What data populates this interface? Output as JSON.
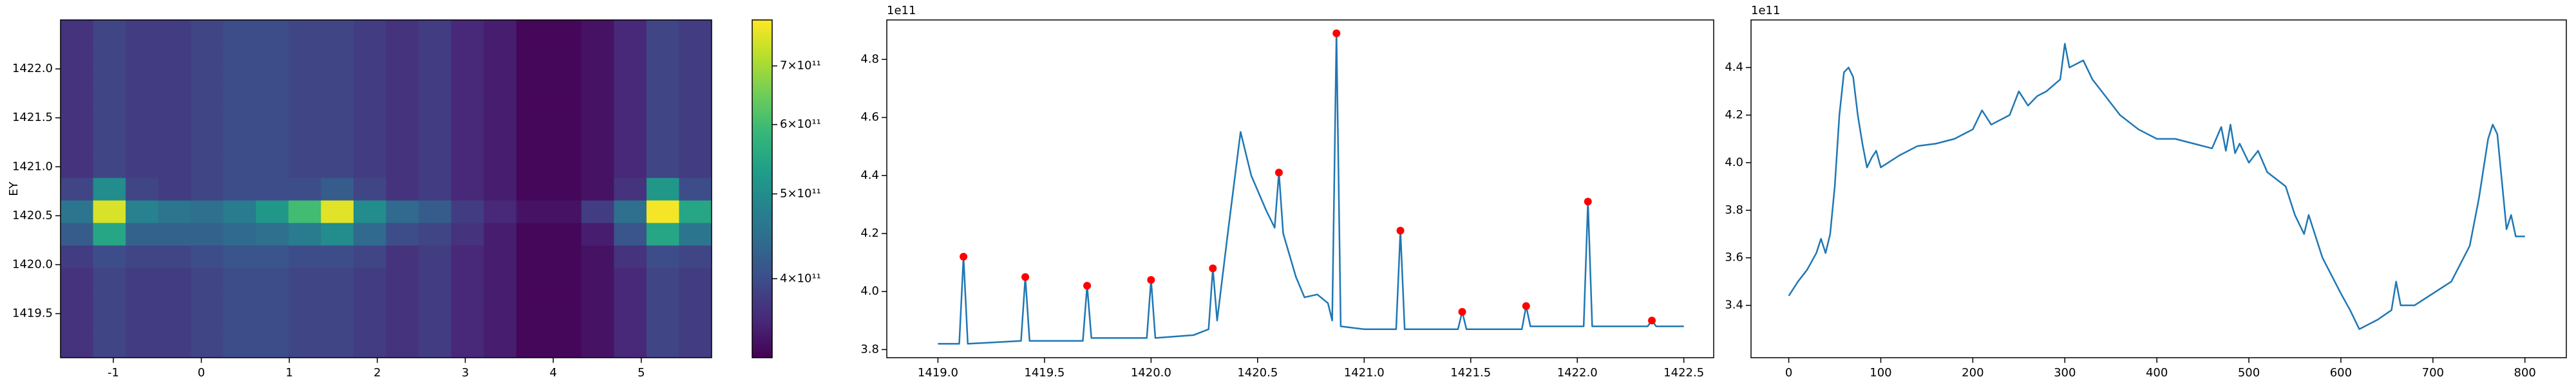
{
  "chart_data": [
    {
      "type": "heatmap",
      "ylabel": "EY",
      "colormap": "viridis",
      "xlim": [
        -1.6,
        5.8
      ],
      "ylim": [
        1419.05,
        1422.5
      ],
      "xticks": [
        -1,
        0,
        1,
        2,
        3,
        4,
        5
      ],
      "yticks": [
        1419.5,
        {
          "value": 1420,
          "label": "1420.0"
        },
        1420.5,
        {
          "value": 1421,
          "label": "1421.0"
        },
        1421.5,
        {
          "value": 1422,
          "label": "1422.0"
        }
      ],
      "xbins": [
        -1.6,
        -1.23,
        -0.86,
        -0.49,
        -0.12,
        0.25,
        0.62,
        0.99,
        1.36,
        1.73,
        2.1,
        2.47,
        2.84,
        3.21,
        3.58,
        3.95,
        4.32,
        4.69,
        5.06,
        5.43,
        5.8
      ],
      "ybins": [
        1419.05,
        1419.28,
        1419.51,
        1419.74,
        1419.97,
        1420.2,
        1420.43,
        1420.66,
        1420.89,
        1421.12,
        1421.35,
        1421.58,
        1421.81,
        1422.04,
        1422.27,
        1422.5
      ],
      "z": [
        [
          370000000000.0,
          390000000000.0,
          380000000000.0,
          380000000000.0,
          390000000000.0,
          400000000000.0,
          400000000000.0,
          390000000000.0,
          390000000000.0,
          380000000000.0,
          370000000000.0,
          380000000000.0,
          360000000000.0,
          350000000000.0,
          330000000000.0,
          330000000000.0,
          340000000000.0,
          360000000000.0,
          390000000000.0,
          380000000000.0
        ],
        [
          370000000000.0,
          390000000000.0,
          380000000000.0,
          380000000000.0,
          390000000000.0,
          400000000000.0,
          400000000000.0,
          390000000000.0,
          390000000000.0,
          380000000000.0,
          370000000000.0,
          380000000000.0,
          360000000000.0,
          350000000000.0,
          330000000000.0,
          330000000000.0,
          340000000000.0,
          360000000000.0,
          390000000000.0,
          380000000000.0
        ],
        [
          370000000000.0,
          390000000000.0,
          380000000000.0,
          380000000000.0,
          390000000000.0,
          400000000000.0,
          400000000000.0,
          390000000000.0,
          390000000000.0,
          380000000000.0,
          370000000000.0,
          380000000000.0,
          360000000000.0,
          350000000000.0,
          330000000000.0,
          330000000000.0,
          340000000000.0,
          360000000000.0,
          390000000000.0,
          380000000000.0
        ],
        [
          370000000000.0,
          390000000000.0,
          380000000000.0,
          380000000000.0,
          390000000000.0,
          400000000000.0,
          400000000000.0,
          390000000000.0,
          390000000000.0,
          380000000000.0,
          370000000000.0,
          380000000000.0,
          360000000000.0,
          350000000000.0,
          330000000000.0,
          330000000000.0,
          340000000000.0,
          360000000000.0,
          390000000000.0,
          380000000000.0
        ],
        [
          380000000000.0,
          400000000000.0,
          390000000000.0,
          390000000000.0,
          400000000000.0,
          410000000000.0,
          410000000000.0,
          400000000000.0,
          400000000000.0,
          390000000000.0,
          370000000000.0,
          380000000000.0,
          360000000000.0,
          350000000000.0,
          330000000000.0,
          330000000000.0,
          340000000000.0,
          370000000000.0,
          400000000000.0,
          390000000000.0
        ],
        [
          420000000000.0,
          550000000000.0,
          430000000000.0,
          430000000000.0,
          430000000000.0,
          440000000000.0,
          450000000000.0,
          470000000000.0,
          500000000000.0,
          440000000000.0,
          400000000000.0,
          390000000000.0,
          370000000000.0,
          350000000000.0,
          330000000000.0,
          330000000000.0,
          350000000000.0,
          410000000000.0,
          550000000000.0,
          460000000000.0
        ],
        [
          460000000000.0,
          750000000000.0,
          480000000000.0,
          460000000000.0,
          450000000000.0,
          470000000000.0,
          520000000000.0,
          600000000000.0,
          760000000000.0,
          500000000000.0,
          440000000000.0,
          420000000000.0,
          380000000000.0,
          360000000000.0,
          340000000000.0,
          340000000000.0,
          380000000000.0,
          450000000000.0,
          780000000000.0,
          550000000000.0
        ],
        [
          390000000000.0,
          500000000000.0,
          390000000000.0,
          380000000000.0,
          390000000000.0,
          400000000000.0,
          400000000000.0,
          400000000000.0,
          420000000000.0,
          390000000000.0,
          370000000000.0,
          380000000000.0,
          360000000000.0,
          350000000000.0,
          330000000000.0,
          330000000000.0,
          340000000000.0,
          370000000000.0,
          520000000000.0,
          400000000000.0
        ],
        [
          370000000000.0,
          390000000000.0,
          380000000000.0,
          380000000000.0,
          390000000000.0,
          400000000000.0,
          400000000000.0,
          390000000000.0,
          390000000000.0,
          380000000000.0,
          370000000000.0,
          380000000000.0,
          360000000000.0,
          350000000000.0,
          330000000000.0,
          330000000000.0,
          340000000000.0,
          360000000000.0,
          390000000000.0,
          380000000000.0
        ],
        [
          370000000000.0,
          390000000000.0,
          380000000000.0,
          380000000000.0,
          390000000000.0,
          400000000000.0,
          400000000000.0,
          390000000000.0,
          390000000000.0,
          380000000000.0,
          370000000000.0,
          380000000000.0,
          360000000000.0,
          350000000000.0,
          330000000000.0,
          330000000000.0,
          340000000000.0,
          360000000000.0,
          390000000000.0,
          380000000000.0
        ],
        [
          370000000000.0,
          390000000000.0,
          380000000000.0,
          380000000000.0,
          390000000000.0,
          400000000000.0,
          400000000000.0,
          390000000000.0,
          390000000000.0,
          380000000000.0,
          370000000000.0,
          380000000000.0,
          360000000000.0,
          350000000000.0,
          330000000000.0,
          330000000000.0,
          340000000000.0,
          360000000000.0,
          390000000000.0,
          380000000000.0
        ],
        [
          370000000000.0,
          390000000000.0,
          380000000000.0,
          380000000000.0,
          390000000000.0,
          400000000000.0,
          400000000000.0,
          390000000000.0,
          390000000000.0,
          380000000000.0,
          370000000000.0,
          380000000000.0,
          360000000000.0,
          350000000000.0,
          330000000000.0,
          330000000000.0,
          340000000000.0,
          360000000000.0,
          390000000000.0,
          380000000000.0
        ],
        [
          370000000000.0,
          390000000000.0,
          380000000000.0,
          380000000000.0,
          390000000000.0,
          400000000000.0,
          400000000000.0,
          390000000000.0,
          390000000000.0,
          380000000000.0,
          370000000000.0,
          380000000000.0,
          360000000000.0,
          350000000000.0,
          330000000000.0,
          330000000000.0,
          340000000000.0,
          360000000000.0,
          390000000000.0,
          380000000000.0
        ],
        [
          370000000000.0,
          390000000000.0,
          380000000000.0,
          380000000000.0,
          390000000000.0,
          400000000000.0,
          400000000000.0,
          390000000000.0,
          390000000000.0,
          380000000000.0,
          370000000000.0,
          380000000000.0,
          360000000000.0,
          350000000000.0,
          330000000000.0,
          330000000000.0,
          340000000000.0,
          360000000000.0,
          390000000000.0,
          380000000000.0
        ],
        [
          370000000000.0,
          390000000000.0,
          380000000000.0,
          380000000000.0,
          390000000000.0,
          400000000000.0,
          400000000000.0,
          390000000000.0,
          390000000000.0,
          380000000000.0,
          370000000000.0,
          380000000000.0,
          360000000000.0,
          350000000000.0,
          330000000000.0,
          330000000000.0,
          340000000000.0,
          360000000000.0,
          390000000000.0,
          380000000000.0
        ]
      ],
      "colorbar": {
        "lim": [
          325000000000.0,
          790000000000.0
        ],
        "log": true,
        "ticks": [
          {
            "value": 400000000000.0,
            "label": "4×10¹¹"
          },
          {
            "value": 500000000000.0,
            "label": "5×10¹¹"
          },
          {
            "value": 600000000000.0,
            "label": "6×10¹¹"
          },
          {
            "value": 700000000000.0,
            "label": "7×10¹¹"
          }
        ]
      }
    },
    {
      "type": "line",
      "offset_label": "1e11",
      "xlim": [
        1418.76,
        1422.64
      ],
      "ylim": [
        377200000000.0,
        493600000000.0
      ],
      "xticks": [
        {
          "value": 1419,
          "label": "1419.0"
        },
        1419.5,
        {
          "value": 1420,
          "label": "1420.0"
        },
        1420.5,
        {
          "value": 1421,
          "label": "1421.0"
        },
        1421.5,
        {
          "value": 1422,
          "label": "1422.0"
        },
        1422.5
      ],
      "yticks": [
        {
          "value": 380000000000.0,
          "label": "3.8"
        },
        {
          "value": 400000000000.0,
          "label": "4.0"
        },
        {
          "value": 420000000000.0,
          "label": "4.2"
        },
        {
          "value": 440000000000.0,
          "label": "4.4"
        },
        {
          "value": 460000000000.0,
          "label": "4.6"
        },
        {
          "value": 480000000000.0,
          "label": "4.8"
        }
      ],
      "series": [
        {
          "color": "#1f77b4",
          "x": [
            1419.0,
            1419.1,
            1419.12,
            1419.14,
            1419.39,
            1419.41,
            1419.43,
            1419.68,
            1419.7,
            1419.72,
            1419.98,
            1420.0,
            1420.02,
            1420.2,
            1420.27,
            1420.29,
            1420.31,
            1420.36,
            1420.42,
            1420.47,
            1420.54,
            1420.58,
            1420.6,
            1420.62,
            1420.68,
            1420.72,
            1420.78,
            1420.83,
            1420.85,
            1420.87,
            1420.89,
            1421.0,
            1421.15,
            1421.17,
            1421.19,
            1421.44,
            1421.46,
            1421.48,
            1421.74,
            1421.76,
            1421.78,
            1422.03,
            1422.05,
            1422.07,
            1422.33,
            1422.35,
            1422.37,
            1422.5
          ],
          "values": [
            382000000000.0,
            382000000000.0,
            412000000000.0,
            382000000000.0,
            383000000000.0,
            405000000000.0,
            383000000000.0,
            383000000000.0,
            402000000000.0,
            384000000000.0,
            384000000000.0,
            404000000000.0,
            384000000000.0,
            385000000000.0,
            387000000000.0,
            408000000000.0,
            390000000000.0,
            420000000000.0,
            455000000000.0,
            440000000000.0,
            428000000000.0,
            422000000000.0,
            441000000000.0,
            420000000000.0,
            405000000000.0,
            398000000000.0,
            399000000000.0,
            396000000000.0,
            390000000000.0,
            489000000000.0,
            388000000000.0,
            387000000000.0,
            387000000000.0,
            421000000000.0,
            387000000000.0,
            387000000000.0,
            393000000000.0,
            387000000000.0,
            387000000000.0,
            395000000000.0,
            388000000000.0,
            388000000000.0,
            431000000000.0,
            388000000000.0,
            388000000000.0,
            390000000000.0,
            388000000000.0,
            388000000000.0
          ]
        }
      ],
      "markers": {
        "color": "#ff0000",
        "x": [
          1419.12,
          1419.41,
          1419.7,
          1420.0,
          1420.29,
          1420.6,
          1420.87,
          1421.17,
          1421.46,
          1421.76,
          1422.05,
          1422.35
        ],
        "values": [
          412000000000.0,
          405000000000.0,
          402000000000.0,
          404000000000.0,
          408000000000.0,
          441000000000.0,
          489000000000.0,
          421000000000.0,
          393000000000.0,
          395000000000.0,
          431000000000.0,
          390000000000.0
        ]
      }
    },
    {
      "type": "line",
      "offset_label": "1e11",
      "xlim": [
        -41,
        845
      ],
      "ylim": [
        318000000000.0,
        460000000000.0
      ],
      "xticks": [
        0,
        100,
        200,
        300,
        400,
        500,
        600,
        700,
        800
      ],
      "yticks": [
        {
          "value": 340000000000.0,
          "label": "3.4"
        },
        {
          "value": 360000000000.0,
          "label": "3.6"
        },
        {
          "value": 380000000000.0,
          "label": "3.8"
        },
        {
          "value": 400000000000.0,
          "label": "4.0"
        },
        {
          "value": 420000000000.0,
          "label": "4.2"
        },
        {
          "value": 440000000000.0,
          "label": "4.4"
        }
      ],
      "series": [
        {
          "color": "#1f77b4",
          "x": [
            0,
            10,
            20,
            30,
            35,
            40,
            45,
            50,
            55,
            60,
            65,
            70,
            75,
            80,
            85,
            90,
            95,
            100,
            120,
            140,
            160,
            180,
            190,
            200,
            210,
            220,
            240,
            250,
            260,
            270,
            280,
            295,
            300,
            305,
            320,
            330,
            340,
            360,
            380,
            400,
            420,
            440,
            460,
            470,
            475,
            480,
            485,
            490,
            500,
            510,
            520,
            540,
            550,
            560,
            565,
            580,
            600,
            610,
            620,
            640,
            655,
            660,
            665,
            680,
            700,
            720,
            740,
            750,
            760,
            765,
            770,
            780,
            785,
            790,
            800
          ],
          "values": [
            344000000000.0,
            350000000000.0,
            355000000000.0,
            362000000000.0,
            368000000000.0,
            362000000000.0,
            370000000000.0,
            390000000000.0,
            420000000000.0,
            438000000000.0,
            440000000000.0,
            436000000000.0,
            420000000000.0,
            408000000000.0,
            398000000000.0,
            402000000000.0,
            405000000000.0,
            398000000000.0,
            403000000000.0,
            407000000000.0,
            408000000000.0,
            410000000000.0,
            412000000000.0,
            414000000000.0,
            422000000000.0,
            416000000000.0,
            420000000000.0,
            430000000000.0,
            424000000000.0,
            428000000000.0,
            430000000000.0,
            435000000000.0,
            450000000000.0,
            440000000000.0,
            443000000000.0,
            435000000000.0,
            430000000000.0,
            420000000000.0,
            414000000000.0,
            410000000000.0,
            410000000000.0,
            408000000000.0,
            406000000000.0,
            415000000000.0,
            405000000000.0,
            416000000000.0,
            404000000000.0,
            408000000000.0,
            400000000000.0,
            405000000000.0,
            396000000000.0,
            390000000000.0,
            378000000000.0,
            370000000000.0,
            378000000000.0,
            360000000000.0,
            345000000000.0,
            338000000000.0,
            330000000000.0,
            334000000000.0,
            338000000000.0,
            350000000000.0,
            340000000000.0,
            340000000000.0,
            345000000000.0,
            350000000000.0,
            365000000000.0,
            385000000000.0,
            410000000000.0,
            416000000000.0,
            412000000000.0,
            372000000000.0,
            378000000000.0,
            369000000000.0,
            369000000000.0
          ]
        }
      ]
    }
  ]
}
